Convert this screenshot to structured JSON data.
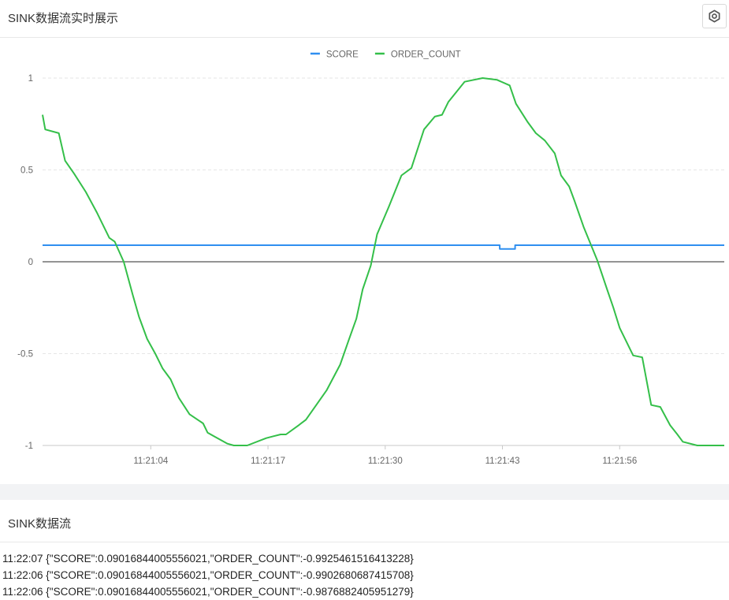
{
  "panel": {
    "title": "SINK数据流实时展示",
    "settings_icon": "gear-icon"
  },
  "chart_data": {
    "type": "line",
    "title": "",
    "xlabel": "",
    "ylabel": "",
    "ylim": [
      -1,
      1
    ],
    "y_ticks": [
      "1",
      "0.5",
      "0",
      "-0.5",
      "-1"
    ],
    "x_tick_labels": [
      "11:21:04",
      "11:21:17",
      "11:21:30",
      "11:21:43",
      "11:21:56"
    ],
    "x_tick_seconds": [
      4,
      17,
      30,
      43,
      56
    ],
    "xlim_seconds": [
      -8.0,
      67.6
    ],
    "legend_position": "top-center",
    "grid": true,
    "series": [
      {
        "name": "SCORE",
        "color": "#2f8ff0",
        "x": [
          -8.0,
          42.7,
          42.7,
          44.4,
          44.4,
          67.6
        ],
        "y": [
          0.09,
          0.09,
          0.07,
          0.07,
          0.09,
          0.09
        ]
      },
      {
        "name": "ORDER_COUNT",
        "color": "#34bf49",
        "x": [
          -8.0,
          -7.7,
          -6.2,
          -5.5,
          -4.5,
          -3.2,
          -2.0,
          -0.6,
          0.0,
          1.0,
          2.0,
          2.7,
          3.6,
          4.5,
          5.3,
          6.2,
          7.1,
          8.3,
          9.8,
          10.3,
          11.0,
          12.5,
          13.2,
          14.7,
          16.8,
          17.6,
          18.4,
          19.0,
          20.4,
          21.2,
          23.5,
          25.0,
          26.0,
          26.8,
          27.5,
          28.4,
          29.1,
          30.4,
          31.8,
          32.9,
          34.3,
          35.5,
          36.3,
          37.0,
          38.8,
          40.8,
          42.4,
          43.8,
          44.5,
          45.8,
          46.7,
          47.7,
          48.8,
          49.5,
          50.4,
          51.0,
          52.0,
          53.5,
          54.6,
          55.3,
          56.0,
          57.5,
          58.5,
          59.5,
          60.5,
          61.6,
          62.4,
          63.0,
          64.6,
          65.0,
          66.0,
          67.6
        ],
        "y": [
          0.8,
          0.72,
          0.7,
          0.55,
          0.48,
          0.38,
          0.27,
          0.13,
          0.11,
          0.0,
          -0.18,
          -0.3,
          -0.42,
          -0.5,
          -0.58,
          -0.64,
          -0.74,
          -0.83,
          -0.88,
          -0.93,
          -0.95,
          -0.99,
          -1.0,
          -1.0,
          -0.96,
          -0.95,
          -0.94,
          -0.94,
          -0.89,
          -0.86,
          -0.7,
          -0.56,
          -0.42,
          -0.31,
          -0.15,
          -0.02,
          0.15,
          0.3,
          0.47,
          0.51,
          0.72,
          0.79,
          0.8,
          0.87,
          0.98,
          1.0,
          0.99,
          0.96,
          0.86,
          0.76,
          0.7,
          0.66,
          0.59,
          0.47,
          0.41,
          0.33,
          0.19,
          0.01,
          -0.15,
          -0.25,
          -0.36,
          -0.51,
          -0.52,
          -0.78,
          -0.79,
          -0.89,
          -0.94,
          -0.98,
          -1.0,
          -1.0,
          -1.0,
          -1.0
        ]
      }
    ]
  },
  "stream": {
    "title": "SINK数据流",
    "lines": [
      "11:22:07 {\"SCORE\":0.09016844005556021,\"ORDER_COUNT\":-0.9925461516413228}",
      "11:22:06 {\"SCORE\":0.09016844005556021,\"ORDER_COUNT\":-0.9902680687415708}",
      "11:22:06 {\"SCORE\":0.09016844005556021,\"ORDER_COUNT\":-0.9876882405951279}"
    ]
  }
}
